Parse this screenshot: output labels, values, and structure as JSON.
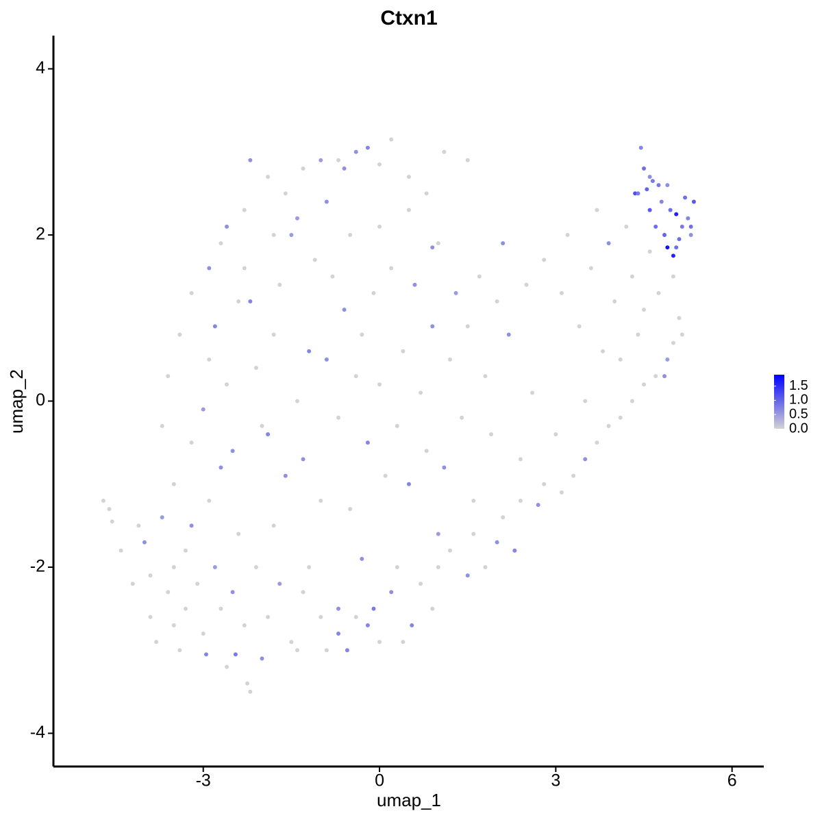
{
  "chart_data": {
    "type": "scatter",
    "title": "Ctxn1",
    "x_label": "umap_1",
    "y_label": "umap_2",
    "xlim": [
      -5.55,
      6.54
    ],
    "ylim": [
      -4.4,
      4.4
    ],
    "xticks": [
      -3,
      0,
      3,
      6
    ],
    "yticks": [
      -4,
      -2,
      0,
      2,
      4
    ],
    "color_low": "#d3d3d3",
    "color_high": "#0000ff",
    "clim": [
      0,
      1.9
    ],
    "cticks": [
      {
        "value": 0,
        "label": "0.0"
      },
      {
        "value": 0.5,
        "label": "0.5"
      },
      {
        "value": 1,
        "label": "1.0"
      },
      {
        "value": 1.5,
        "label": "1.5"
      }
    ],
    "x": [
      -4.7,
      -4.6,
      -4.55,
      -4.4,
      -4.2,
      -4.1,
      -4.0,
      -3.9,
      -3.9,
      -3.8,
      -3.7,
      -3.6,
      -3.5,
      -3.5,
      -3.4,
      -3.3,
      -3.3,
      -3.2,
      -3.1,
      -3.0,
      -2.95,
      -2.9,
      -2.8,
      -2.7,
      -2.6,
      -2.5,
      -2.45,
      -2.4,
      -2.3,
      -2.25,
      -2.2,
      -2.1,
      -2.0,
      -1.9,
      -1.8,
      -1.7,
      -1.5,
      -1.4,
      -1.3,
      -1.2,
      -1.0,
      -0.9,
      -0.7,
      -0.7,
      -0.55,
      -0.4,
      -0.3,
      -0.2,
      -0.1,
      0,
      0.2,
      0.3,
      0.4,
      0.55,
      0.7,
      0.9,
      1.0,
      1.0,
      1.2,
      1.5,
      1.6,
      1.8,
      2.0,
      2.1,
      2.3,
      2.4,
      2.7,
      2.8,
      3.1,
      3.3,
      3.5,
      3.7,
      3.9,
      4.1,
      4.3,
      4.5,
      4.7,
      4.9,
      5.0,
      5.1,
      5.15,
      -3.5,
      -3.2,
      -3.0,
      -2.9,
      -2.8,
      -2.7,
      -2.6,
      -2.5,
      -2.4,
      -2.3,
      -2.2,
      -2.1,
      -2.0,
      -1.9,
      -1.8,
      -1.7,
      -1.6,
      -1.5,
      -1.4,
      -1.3,
      -1.2,
      -1.1,
      -1.0,
      -0.9,
      -0.8,
      -0.7,
      -0.6,
      -0.5,
      -0.4,
      -0.3,
      -0.2,
      -0.1,
      0,
      0.1,
      0.2,
      0.3,
      0.4,
      0.5,
      0.6,
      0.7,
      0.8,
      0.9,
      1.0,
      1.1,
      1.2,
      1.3,
      1.4,
      1.5,
      1.6,
      1.7,
      1.8,
      1.9,
      2.0,
      2.1,
      2.2,
      2.4,
      2.5,
      2.6,
      2.8,
      3.0,
      3.1,
      3.2,
      3.4,
      3.5,
      3.6,
      3.7,
      3.8,
      3.9,
      4.0,
      4.1,
      4.2,
      4.3,
      4.4,
      4.5,
      4.6,
      4.75,
      4.85,
      5.0,
      -2.2,
      -1.9,
      -1.6,
      -1.3,
      -1.0,
      -0.7,
      -0.6,
      -0.4,
      -0.2,
      0,
      0.2,
      0.5,
      0.8,
      1.1,
      1.5,
      -2.6,
      -2.3,
      -1.8,
      -1.4,
      -0.9,
      -0.5,
      0,
      0.5,
      0.9,
      -2.9,
      -2.7,
      -3.2,
      -3.4,
      -3.6,
      -3.7,
      4.35,
      4.45,
      4.5,
      4.55,
      4.6,
      4.65,
      4.7,
      4.75,
      4.8,
      4.85,
      4.9,
      4.95,
      5.0,
      5.05,
      5.1,
      5.15,
      5.2,
      5.25,
      5.3,
      5.35,
      5.3,
      4.6,
      4.4,
      5.05,
      4.9
    ],
    "y": [
      -1.2,
      -1.3,
      -1.45,
      -1.8,
      -2.2,
      -1.5,
      -1.7,
      -2.1,
      -2.6,
      -2.9,
      -1.4,
      -2.3,
      -2.0,
      -2.7,
      -3.0,
      -1.8,
      -2.5,
      -1.5,
      -2.2,
      -2.8,
      -3.05,
      -1.2,
      -2.0,
      -2.5,
      -3.2,
      -2.3,
      -3.05,
      -1.6,
      -2.7,
      -3.4,
      -3.5,
      -2.0,
      -3.1,
      -2.6,
      -1.5,
      -2.2,
      -2.9,
      -3.0,
      -2.3,
      -2.0,
      -2.6,
      -3.0,
      -2.5,
      -2.8,
      -3.0,
      -2.6,
      -1.9,
      -2.7,
      -2.5,
      -2.9,
      -2.3,
      -2.0,
      -2.9,
      -2.7,
      -2.2,
      -2.5,
      -2.0,
      -1.6,
      -1.8,
      -2.1,
      -1.6,
      -2.0,
      -1.7,
      -1.4,
      -1.8,
      -1.2,
      -1.25,
      -1.0,
      -1.1,
      -0.9,
      -0.7,
      -0.5,
      -0.3,
      -0.2,
      0,
      0.2,
      0.3,
      0.5,
      0.7,
      1.0,
      0.8,
      -1.0,
      -0.5,
      -0.1,
      0.5,
      0.9,
      -0.8,
      0.2,
      -0.6,
      1.2,
      1.6,
      1.2,
      0.4,
      -0.3,
      -0.4,
      0.8,
      1.4,
      -0.9,
      2.0,
      0,
      -0.7,
      0.6,
      1.7,
      -1.2,
      0.5,
      1.5,
      -0.2,
      1.1,
      -1.3,
      0.3,
      0.8,
      -0.5,
      1.3,
      0.2,
      -0.9,
      1.6,
      -0.3,
      0.6,
      -1.0,
      1.4,
      0.1,
      -0.6,
      0.9,
      1.9,
      -0.8,
      0.5,
      1.3,
      -0.2,
      0.9,
      -1.2,
      1.5,
      0.3,
      -0.4,
      1.2,
      1.9,
      0.8,
      -0.7,
      1.4,
      0.1,
      1.7,
      -0.4,
      1.3,
      2.0,
      0.9,
      0,
      1.6,
      2.3,
      0.6,
      1.9,
      1.2,
      0.5,
      2.1,
      1.5,
      0.8,
      1.1,
      1.8,
      1.3,
      0.3,
      1.5,
      2.9,
      2.7,
      2.5,
      2.8,
      2.9,
      2.9,
      2.8,
      3.0,
      3.05,
      2.85,
      3.15,
      2.7,
      2.5,
      3.0,
      2.9,
      2.1,
      2.3,
      2.0,
      2.2,
      2.4,
      2.0,
      2.1,
      2.3,
      1.85,
      1.6,
      1.9,
      1.3,
      0.8,
      0.3,
      -0.3,
      2.5,
      3.05,
      2.8,
      2.55,
      2.3,
      2.65,
      2.1,
      2.6,
      2.4,
      2.0,
      1.85,
      2.3,
      1.75,
      2.25,
      1.95,
      2.1,
      2.45,
      2.2,
      2.0,
      2.4,
      2.1,
      2.7,
      2.5,
      1.85,
      2.6
    ],
    "values": [
      0,
      0,
      0,
      0,
      0,
      0,
      0.6,
      0,
      0,
      0,
      0.5,
      0,
      0,
      0,
      0,
      0,
      0,
      0.6,
      0,
      0,
      0.7,
      0,
      0.5,
      0,
      0,
      0.6,
      0.8,
      0,
      0,
      0,
      0,
      0,
      0.6,
      0,
      0,
      0.5,
      0,
      0,
      0,
      0,
      0,
      0,
      0.6,
      0.7,
      0.7,
      0,
      0.6,
      0.7,
      0.8,
      0,
      0.6,
      0,
      0,
      0.7,
      0,
      0,
      0,
      0.5,
      0,
      0.6,
      0,
      0,
      0.6,
      0,
      0.7,
      0,
      0.6,
      0,
      0,
      0,
      0.6,
      0,
      0,
      0,
      0,
      0,
      0,
      0.5,
      0,
      0,
      0,
      0,
      0,
      0.5,
      0,
      0.7,
      0.6,
      0,
      0.6,
      0,
      0,
      0.7,
      0,
      0,
      0.7,
      0,
      0,
      0.6,
      0.5,
      0,
      0.6,
      0.7,
      0,
      0,
      0.6,
      0,
      0,
      0.6,
      0,
      0,
      0,
      0.7,
      0,
      0,
      0,
      0,
      0,
      0,
      0.7,
      0.6,
      0,
      0,
      0.6,
      0,
      0.6,
      0,
      0.5,
      0,
      0,
      0,
      0,
      0,
      0,
      0,
      0.6,
      0.6,
      0,
      0,
      0,
      0,
      0,
      0,
      0,
      0,
      0,
      0,
      0,
      0,
      0.6,
      0,
      0,
      0,
      0,
      0,
      0,
      0,
      0,
      0.6,
      0,
      0.6,
      0,
      0,
      0,
      0.5,
      0,
      0.6,
      0.6,
      0.7,
      0,
      0,
      0,
      0,
      0,
      0,
      0.6,
      0,
      0,
      0.5,
      0.6,
      0,
      0,
      0,
      0.6,
      0.6,
      0,
      0,
      0,
      0,
      0,
      1.2,
      0.7,
      0.9,
      1.0,
      1.1,
      0.8,
      0.9,
      0.8,
      0.7,
      1.0,
      1.75,
      0.9,
      1.6,
      1.6,
      0.9,
      0.8,
      0.9,
      0.7,
      0.6,
      1.1,
      0.9,
      0.6,
      0.8,
      0.9,
      0.6
    ]
  }
}
